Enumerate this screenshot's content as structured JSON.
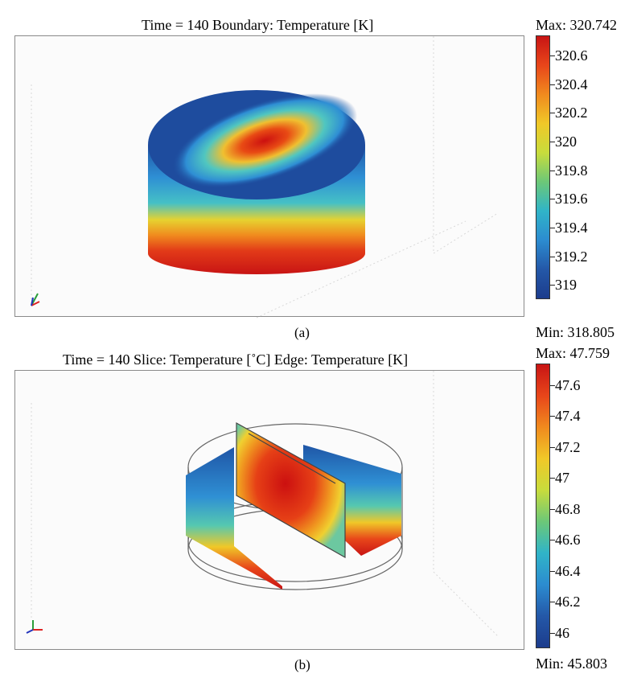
{
  "panel_a": {
    "title": "Time = 140    Boundary: Temperature [K]",
    "max_label": "Max: 320.742",
    "min_label": "Min: 318.805",
    "caption": "(a)",
    "colorbar_ticks": [
      "320.6",
      "320.4",
      "320.2",
      "320",
      "319.8",
      "319.6",
      "319.4",
      "319.2",
      "319"
    ]
  },
  "panel_b": {
    "title": "Time = 140    Slice: Temperature [˚C]    Edge: Temperature [K]",
    "max_label": "Max: 47.759",
    "min_label": "Min: 45.803",
    "caption": "(b)",
    "colorbar_ticks": [
      "47.6",
      "47.4",
      "47.2",
      "47",
      "46.8",
      "46.6",
      "46.4",
      "46.2",
      "46"
    ]
  },
  "colormap": [
    "#c81414",
    "#e8461a",
    "#f08a1e",
    "#f0c828",
    "#c8dc3c",
    "#6cc878",
    "#30b4c8",
    "#2c8cd0",
    "#2458a8",
    "#1c3c8c"
  ]
}
